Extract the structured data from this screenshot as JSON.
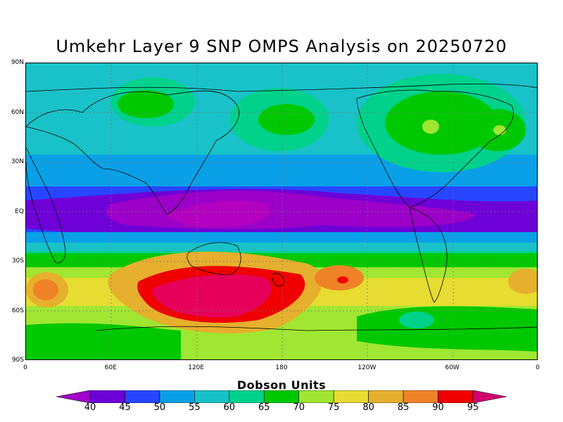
{
  "title": "Umkehr Layer 9 SNP OMPS Analysis on 20250720",
  "lat_ticks": [
    "90N",
    "60N",
    "30N",
    "EQ",
    "30S",
    "60S",
    "90S"
  ],
  "lon_ticks": [
    "0",
    "60E",
    "120E",
    "180",
    "120W",
    "60W",
    "0"
  ],
  "colorbar": {
    "title": "Dobson Units",
    "labels": [
      "40",
      "45",
      "50",
      "55",
      "60",
      "65",
      "70",
      "75",
      "80",
      "85",
      "90",
      "95"
    ],
    "colors": [
      "#9c00c8",
      "#6e00d8",
      "#2846ff",
      "#0aa0e8",
      "#19c2c8",
      "#00d28c",
      "#00c800",
      "#a0e632",
      "#e6dc32",
      "#e6af2d",
      "#f08228",
      "#f00000",
      "#d2006e"
    ],
    "under_color": "#a000c8",
    "over_color": "#d2006e"
  },
  "field_colors": {
    "c50": "#0aa0e8",
    "c45": "#2846ff",
    "c40": "#6e00d8",
    "c35": "#9c00c8",
    "c65": "#00d28c",
    "c70": "#00c800",
    "c75": "#a0e632",
    "c80": "#e6dc32",
    "c85": "#e6af2d",
    "c90": "#f08228",
    "c95": "#e6005a"
  }
}
